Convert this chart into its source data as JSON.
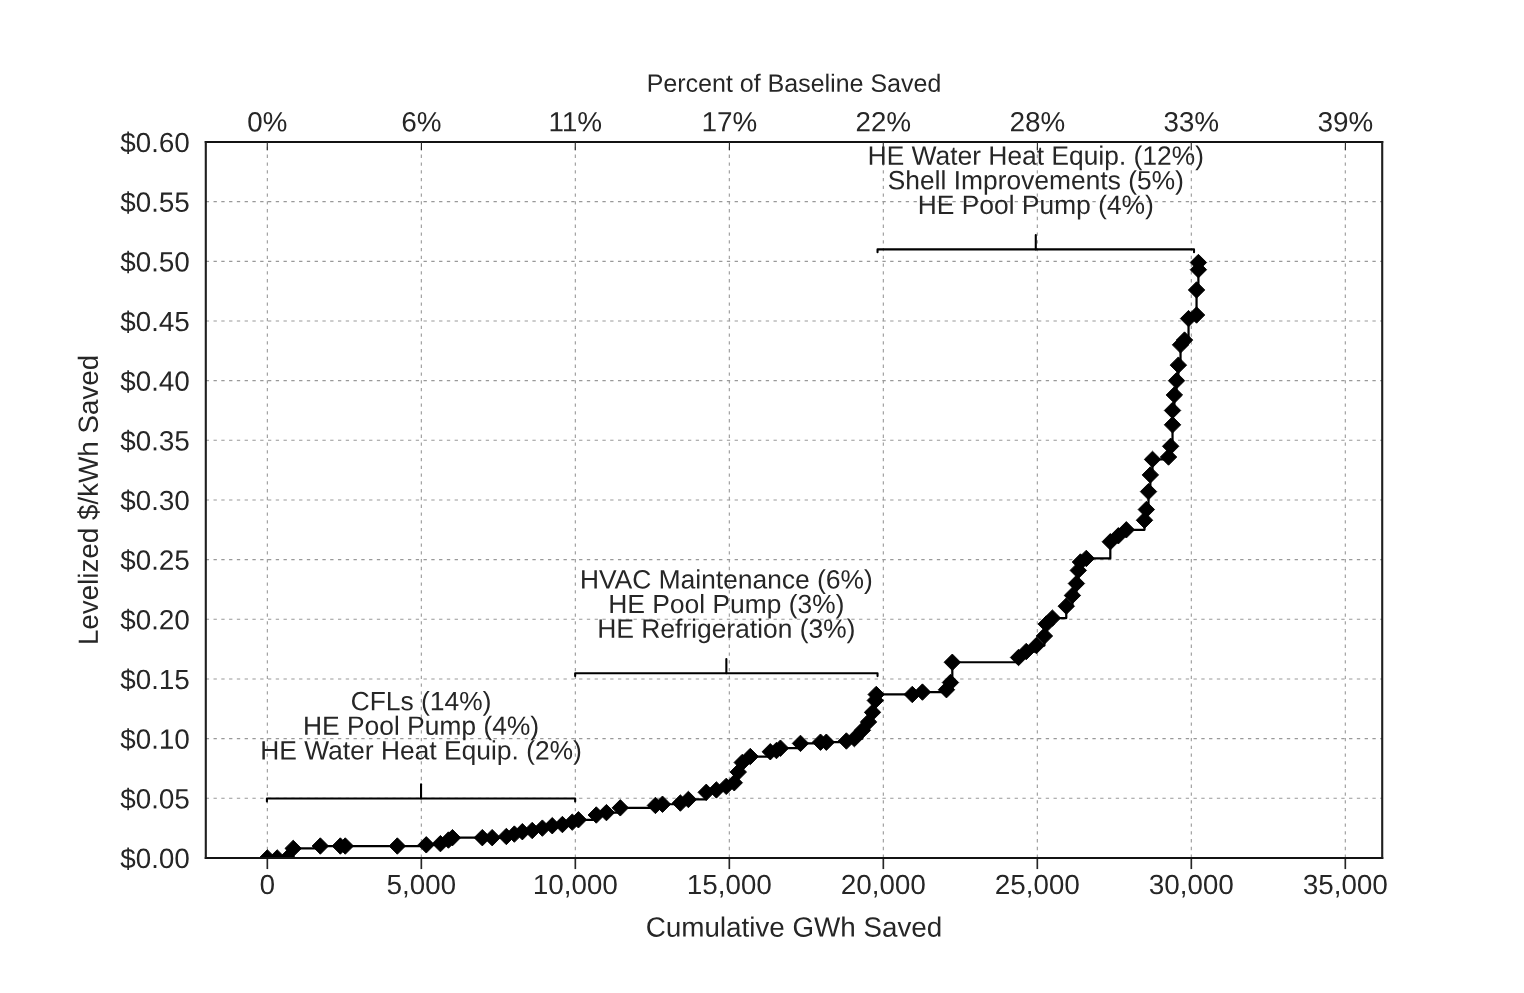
{
  "chart_data": {
    "type": "step",
    "xlabel": "Cumulative GWh Saved",
    "ylabel": "Levelized $/kWh Saved",
    "x2label": "Percent of Baseline Saved",
    "x": [
      0,
      320,
      650,
      840,
      1720,
      2370,
      2530,
      4220,
      5160,
      5620,
      5880,
      6010,
      6980,
      7300,
      7760,
      8020,
      8280,
      8600,
      8930,
      9250,
      9580,
      9900,
      10100,
      10680,
      11010,
      11460,
      12600,
      12830,
      13410,
      13670,
      14250,
      14580,
      14900,
      15160,
      15290,
      15420,
      15680,
      16330,
      16530,
      16660,
      17310,
      17960,
      18150,
      18800,
      19060,
      19320,
      19520,
      19650,
      19740,
      19770,
      20940,
      21270,
      22050,
      22180,
      22240,
      24390,
      24640,
      24970,
      25230,
      25290,
      25490,
      25940,
      26140,
      26270,
      26330,
      26400,
      26590,
      27370,
      27630,
      27890,
      28480,
      28540,
      28610,
      28670,
      28740,
      29260,
      29330,
      29390,
      29390,
      29450,
      29520,
      29580,
      29650,
      29780,
      29910,
      30170,
      30170,
      30230,
      30230
    ],
    "series": [
      {
        "color": "#000000",
        "values": [
          0,
          0,
          0,
          0.008,
          0.01,
          0.01,
          0.01,
          0.01,
          0.011,
          0.012,
          0.015,
          0.017,
          0.017,
          0.017,
          0.018,
          0.02,
          0.022,
          0.023,
          0.025,
          0.027,
          0.028,
          0.03,
          0.032,
          0.036,
          0.038,
          0.042,
          0.044,
          0.045,
          0.046,
          0.049,
          0.055,
          0.057,
          0.06,
          0.063,
          0.072,
          0.08,
          0.085,
          0.089,
          0.09,
          0.092,
          0.096,
          0.097,
          0.097,
          0.098,
          0.1,
          0.107,
          0.114,
          0.122,
          0.132,
          0.137,
          0.137,
          0.139,
          0.141,
          0.147,
          0.164,
          0.168,
          0.173,
          0.178,
          0.186,
          0.196,
          0.201,
          0.211,
          0.22,
          0.23,
          0.241,
          0.248,
          0.251,
          0.265,
          0.27,
          0.275,
          0.283,
          0.292,
          0.307,
          0.321,
          0.334,
          0.336,
          0.345,
          0.363,
          0.375,
          0.388,
          0.4,
          0.413,
          0.43,
          0.434,
          0.452,
          0.455,
          0.476,
          0.493,
          0.499
        ]
      }
    ],
    "marker": "diamond",
    "line_style": "solid",
    "grid": true,
    "legend": false,
    "xlim": [
      -2000,
      36200
    ],
    "xticks": [
      {
        "value": 0,
        "label": "0"
      },
      {
        "value": 5000,
        "label": "5,000"
      },
      {
        "value": 10000,
        "label": "10,000"
      },
      {
        "value": 15000,
        "label": "15,000"
      },
      {
        "value": 20000,
        "label": "20,000"
      },
      {
        "value": 25000,
        "label": "25,000"
      },
      {
        "value": 30000,
        "label": "30,000"
      },
      {
        "value": 35000,
        "label": "35,000"
      }
    ],
    "x2lim": [
      -2.22,
      40.22
    ],
    "x2ticks": [
      {
        "value": 0,
        "label": "0%"
      },
      {
        "value": 5.56,
        "label": "6%"
      },
      {
        "value": 11.11,
        "label": "11%"
      },
      {
        "value": 16.67,
        "label": "17%"
      },
      {
        "value": 22.22,
        "label": "22%"
      },
      {
        "value": 27.78,
        "label": "28%"
      },
      {
        "value": 33.33,
        "label": "33%"
      },
      {
        "value": 38.89,
        "label": "39%"
      }
    ],
    "ylim": [
      0,
      0.6
    ],
    "yticks": [
      {
        "value": 0,
        "label": "$0.00"
      },
      {
        "value": 0.05,
        "label": "$0.05"
      },
      {
        "value": 0.1,
        "label": "$0.10"
      },
      {
        "value": 0.15,
        "label": "$0.15"
      },
      {
        "value": 0.2,
        "label": "$0.20"
      },
      {
        "value": 0.25,
        "label": "$0.25"
      },
      {
        "value": 0.3,
        "label": "$0.30"
      },
      {
        "value": 0.35,
        "label": "$0.35"
      },
      {
        "value": 0.4,
        "label": "$0.40"
      },
      {
        "value": 0.45,
        "label": "$0.45"
      },
      {
        "value": 0.5,
        "label": "$0.50"
      },
      {
        "value": 0.55,
        "label": "$0.55"
      },
      {
        "value": 0.6,
        "label": "$0.60"
      }
    ],
    "annotations": [
      "CFLs (14%)\nHE Pool Pump (4%)\nHE Water Heat Equip. (2%)",
      "HVAC Maintenance (6%)\nHE Pool Pump (3%)\nHE Refrigeration (3%)",
      "HE Water Heat Equip. (12%)\nShell Improvements (5%)\nHE Pool Pump (4%)"
    ]
  }
}
